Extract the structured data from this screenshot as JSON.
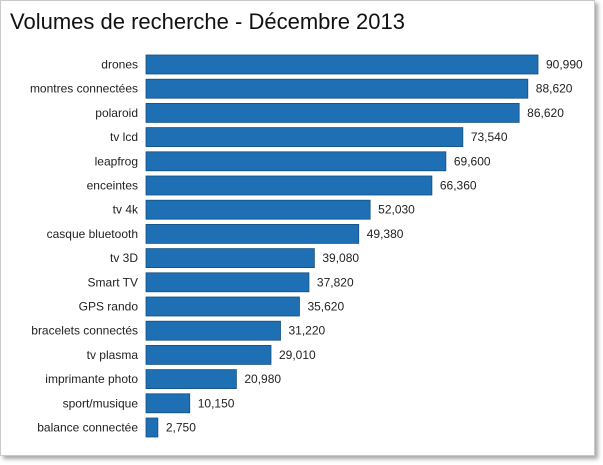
{
  "chart_data": {
    "type": "bar",
    "orientation": "horizontal",
    "title": "Volumes de recherche - Décembre 2013",
    "categories": [
      "drones",
      "montres connectées",
      "polaroid",
      "tv lcd",
      "leapfrog",
      "enceintes",
      "tv 4k",
      "casque bluetooth",
      "tv 3D",
      "Smart TV",
      "GPS rando",
      "bracelets connectés",
      "tv plasma",
      "imprimante photo",
      "sport/musique",
      "balance connectée"
    ],
    "values": [
      90990,
      88620,
      86620,
      73540,
      69600,
      66360,
      52030,
      49380,
      39080,
      37820,
      35620,
      31220,
      29010,
      20980,
      10150,
      2750
    ],
    "value_labels": [
      "90,990",
      "88,620",
      "86,620",
      "73,540",
      "69,600",
      "66,360",
      "52,030",
      "49,380",
      "39,080",
      "37,820",
      "35,620",
      "31,220",
      "29,010",
      "20,980",
      "10,150",
      "2,750"
    ],
    "xlim": [
      0,
      90990
    ],
    "grid": false,
    "legend": "none",
    "bar_color": "#1f6fb5",
    "bar_edge_color": "#15507f"
  }
}
